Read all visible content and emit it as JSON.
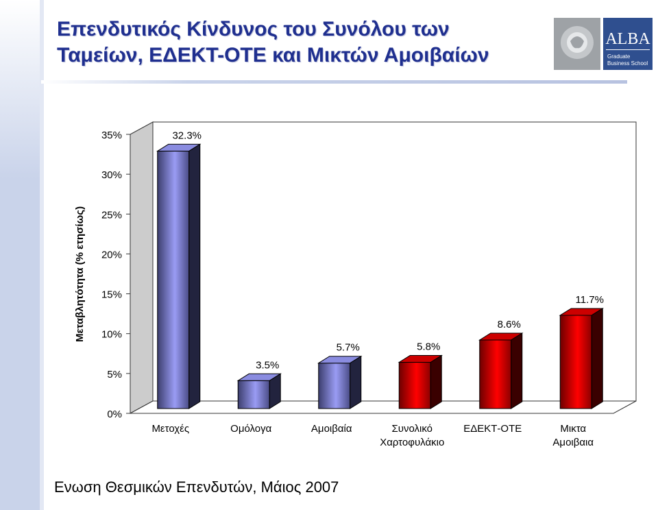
{
  "slide": {
    "title_line1": "Επενδυτικός Κίνδυνος του Συνόλου των",
    "title_line2": "Ταμείων, ΕΔΕΚΤ-ΟΤΕ και Μικτών Αμοιβαίων",
    "footer": "Ενωση Θεσμικών Επενδυτών, Μάιος 2007",
    "logo": {
      "text": "ALBA",
      "subtitle_line1": "Graduate",
      "subtitle_line2": "Business School",
      "icon": "lion-crest-icon"
    }
  },
  "colors": {
    "title": "#1f2f8f",
    "blue_bar_light": "#9a9cf4",
    "blue_bar_dark": "#3c3e6e",
    "red_bar_light": "#ff0000",
    "red_bar_dark": "#6e0000",
    "sidebar": "#c8d2ea"
  },
  "chart_data": {
    "type": "bar",
    "ylabel": "Μεταβλητότητα (% ετησίως)",
    "ylim": [
      0,
      35
    ],
    "yticks": [
      "0%",
      "5%",
      "10%",
      "15%",
      "20%",
      "25%",
      "30%",
      "35%"
    ],
    "categories": [
      [
        "Μετοχές"
      ],
      [
        "Ομόλογα"
      ],
      [
        "Αμοιβαία"
      ],
      [
        "Συνολικό",
        "Χαρτοφυλάκιο"
      ],
      [
        "ΕΔΕΚΤ-ΟΤΕ"
      ],
      [
        "Μικτα",
        "Αμοιβαια"
      ]
    ],
    "values": [
      32.3,
      3.5,
      5.7,
      5.8,
      8.6,
      11.7
    ],
    "value_labels": [
      "32.3%",
      "3.5%",
      "5.7%",
      "5.8%",
      "8.6%",
      "11.7%"
    ],
    "bar_colors": [
      "blue",
      "blue",
      "blue",
      "red",
      "red",
      "red"
    ],
    "grid": false,
    "style": "3d"
  }
}
